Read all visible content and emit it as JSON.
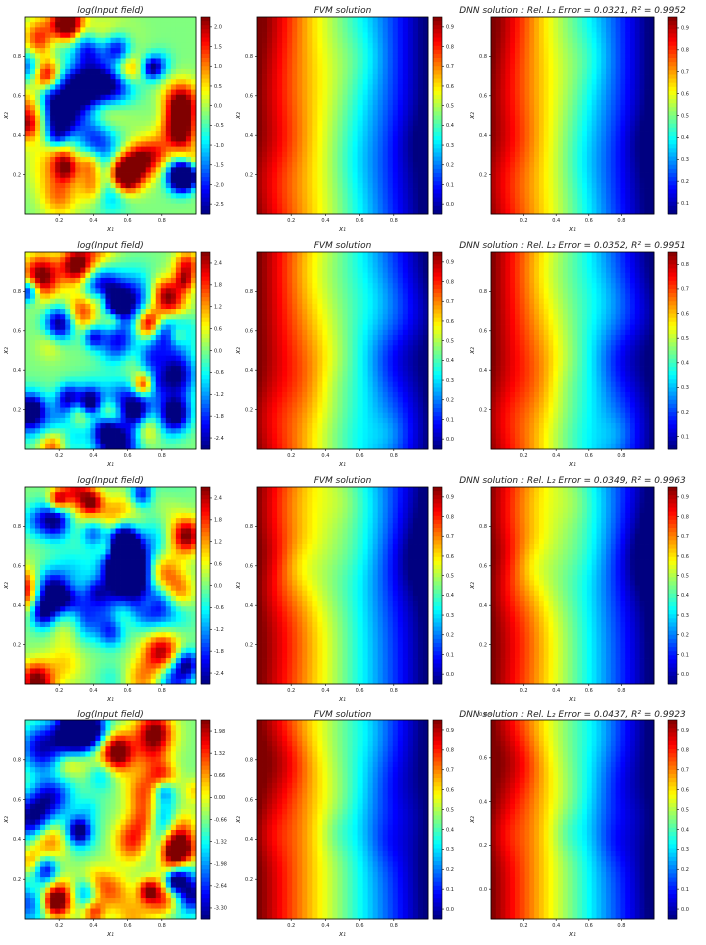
{
  "figure": {
    "rows": [
      {
        "panels": [
          {
            "kind": "input",
            "title": "log(Input field)",
            "colorbar_ticks": [
              "2.0",
              "1.5",
              "1.0",
              "0.5",
              "0.0",
              "-0.5",
              "-1.0",
              "-1.5",
              "-2.0",
              "-2.5"
            ],
            "seed": 11
          },
          {
            "kind": "fvm",
            "title": "FVM solution",
            "colorbar_ticks": [
              "0.9",
              "0.8",
              "0.7",
              "0.6",
              "0.5",
              "0.4",
              "0.3",
              "0.2",
              "0.1",
              "0.0"
            ],
            "seed": 12
          },
          {
            "kind": "dnn",
            "title": "DNN solution : Rel. L₂ Error = 0.0321, R² = 0.9952",
            "colorbar_ticks": [
              "0.9",
              "0.8",
              "0.7",
              "0.6",
              "0.5",
              "0.4",
              "0.3",
              "0.2",
              "0.1"
            ],
            "seed": 12
          }
        ]
      },
      {
        "panels": [
          {
            "kind": "input",
            "title": "log(Input field)",
            "colorbar_ticks": [
              "2.4",
              "1.8",
              "1.2",
              "0.6",
              "0.0",
              "-0.6",
              "-1.2",
              "-1.8",
              "-2.4"
            ],
            "seed": 21
          },
          {
            "kind": "fvm",
            "title": "FVM solution",
            "colorbar_ticks": [
              "0.9",
              "0.8",
              "0.7",
              "0.6",
              "0.5",
              "0.4",
              "0.3",
              "0.2",
              "0.1",
              "0.0"
            ],
            "seed": 22
          },
          {
            "kind": "dnn",
            "title": "DNN solution : Rel. L₂ Error = 0.0352, R² = 0.9951",
            "colorbar_ticks": [
              "0.8",
              "0.7",
              "0.6",
              "0.5",
              "0.4",
              "0.3",
              "0.2",
              "0.1"
            ],
            "seed": 22
          }
        ]
      },
      {
        "panels": [
          {
            "kind": "input",
            "title": "log(Input field)",
            "colorbar_ticks": [
              "2.4",
              "1.8",
              "1.2",
              "0.6",
              "0.0",
              "-0.6",
              "-1.2",
              "-1.8",
              "-2.4"
            ],
            "seed": 31
          },
          {
            "kind": "fvm",
            "title": "FVM solution",
            "colorbar_ticks": [
              "0.9",
              "0.8",
              "0.7",
              "0.6",
              "0.5",
              "0.4",
              "0.3",
              "0.2",
              "0.1",
              "0.0"
            ],
            "seed": 32
          },
          {
            "kind": "dnn",
            "title": "DNN solution : Rel. L₂ Error = 0.0349, R² = 0.9963",
            "colorbar_ticks": [
              "0.9",
              "0.8",
              "0.7",
              "0.6",
              "0.5",
              "0.4",
              "0.3",
              "0.2",
              "0.1",
              "0.0"
            ],
            "seed": 32
          }
        ]
      },
      {
        "panels": [
          {
            "kind": "input",
            "title": "log(Input field)",
            "colorbar_ticks": [
              "1.98",
              "1.32",
              "0.66",
              "0.00",
              "-0.66",
              "-1.32",
              "-1.98",
              "-2.64",
              "-3.30"
            ],
            "seed": 41
          },
          {
            "kind": "fvm",
            "title": "FVM solution",
            "colorbar_ticks": [
              "0.9",
              "0.8",
              "0.7",
              "0.6",
              "0.5",
              "0.4",
              "0.3",
              "0.2",
              "0.1",
              "0.0"
            ],
            "seed": 42
          },
          {
            "kind": "dnn",
            "title": "DNN solution : Rel. L₂ Error = 0.0437, R² = 0.9923",
            "colorbar_ticks": [
              "0.9",
              "0.8",
              "0.7",
              "0.6",
              "0.5",
              "0.4",
              "0.3",
              "0.2",
              "0.1",
              "0.0"
            ],
            "seed": 42
          }
        ]
      }
    ],
    "x_ticks": [
      "0.2",
      "0.4",
      "0.6",
      "0.8"
    ],
    "y_ticks": [
      "0.2",
      "0.4",
      "0.6",
      "0.8"
    ],
    "y_ticks_row4_dnn": [
      "0.0",
      "0.2",
      "0.4",
      "0.6",
      "0.8"
    ],
    "xlabel": "x₁",
    "ylabel": "x₂",
    "colormap": "jet"
  },
  "chart_data": {
    "type": "heatmap",
    "grid": "4 rows x 3 columns",
    "x_range": [
      0,
      1
    ],
    "y_range": [
      0,
      1
    ],
    "colormap": "jet",
    "panels": [
      {
        "row": 1,
        "title": "log(Input field)",
        "color_range": [
          -2.7,
          2.2
        ]
      },
      {
        "row": 1,
        "title": "FVM solution",
        "color_range": [
          0.0,
          1.0
        ]
      },
      {
        "row": 1,
        "title": "DNN solution : Rel. L₂ Error = 0.0321, R² = 0.9952",
        "rel_l2_error": 0.0321,
        "r2": 0.9952,
        "color_range": [
          0.05,
          1.0
        ]
      },
      {
        "row": 2,
        "title": "log(Input field)",
        "color_range": [
          -2.8,
          2.8
        ]
      },
      {
        "row": 2,
        "title": "FVM solution",
        "color_range": [
          0.0,
          1.0
        ]
      },
      {
        "row": 2,
        "title": "DNN solution : Rel. L₂ Error = 0.0352, R² = 0.9951",
        "rel_l2_error": 0.0352,
        "r2": 0.9951,
        "color_range": [
          0.05,
          0.9
        ]
      },
      {
        "row": 3,
        "title": "log(Input field)",
        "color_range": [
          -2.6,
          2.6
        ]
      },
      {
        "row": 3,
        "title": "FVM solution",
        "color_range": [
          0.0,
          1.0
        ]
      },
      {
        "row": 3,
        "title": "DNN solution : Rel. L₂ Error = 0.0349, R² = 0.9963",
        "rel_l2_error": 0.0349,
        "r2": 0.9963,
        "color_range": [
          0.0,
          0.97
        ]
      },
      {
        "row": 4,
        "title": "log(Input field)",
        "color_range": [
          -3.5,
          2.3
        ]
      },
      {
        "row": 4,
        "title": "FVM solution",
        "color_range": [
          0.0,
          1.0
        ]
      },
      {
        "row": 4,
        "title": "DNN solution : Rel. L₂ Error = 0.0437, R² = 0.9923",
        "rel_l2_error": 0.0437,
        "r2": 0.9923,
        "color_range": [
          0.0,
          0.97
        ]
      }
    ]
  }
}
